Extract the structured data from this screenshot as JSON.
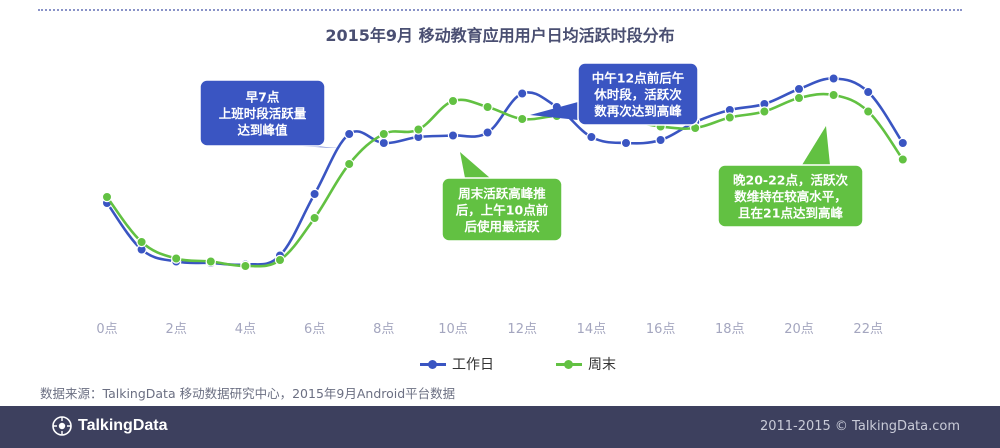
{
  "title": "2015年9月  移动教育应用用户日均活跃时段分布",
  "colors": {
    "workday": "#3a55c2",
    "weekend": "#62c142",
    "axis_text": "#a4a6bf",
    "footer_bg": "#3d405e"
  },
  "chart_data": {
    "type": "line",
    "x": [
      0,
      1,
      2,
      3,
      4,
      5,
      6,
      7,
      8,
      9,
      10,
      11,
      12,
      13,
      14,
      15,
      16,
      17,
      18,
      19,
      20,
      21,
      22,
      23
    ],
    "x_tick_labels": [
      "0点",
      "2点",
      "4点",
      "6点",
      "8点",
      "10点",
      "12点",
      "14点",
      "16点",
      "18点",
      "20点",
      "22点"
    ],
    "series": [
      {
        "name": "工作日",
        "color": "#3a55c2",
        "values": [
          42,
          11,
          3,
          2,
          1,
          7,
          48,
          88,
          82,
          86,
          87,
          89,
          115,
          106,
          86,
          82,
          84,
          96,
          104,
          108,
          118,
          125,
          116,
          82
        ]
      },
      {
        "name": "周末",
        "color": "#62c142",
        "values": [
          46,
          16,
          5,
          3,
          0,
          4,
          32,
          68,
          88,
          91,
          110,
          106,
          98,
          100,
          99,
          97,
          93,
          92,
          99,
          103,
          112,
          114,
          103,
          71
        ]
      }
    ],
    "annotations": [
      {
        "id": "morning",
        "text": [
          "早7点",
          "上班时段活跃量",
          "达到峰值"
        ],
        "color": "#3a55c2"
      },
      {
        "id": "weekend_peak",
        "text": [
          "周末活跃高峰推",
          "后，上午10点前",
          "后使用最活跃"
        ],
        "color": "#62c142"
      },
      {
        "id": "noon",
        "text": [
          "中午12点前后午",
          "休时段，活跃次",
          "数再次达到高峰"
        ],
        "color": "#3a55c2"
      },
      {
        "id": "evening",
        "text": [
          "晚20-22点，活跃次",
          "数维持在较高水平，",
          "且在21点达到高峰"
        ],
        "color": "#62c142"
      }
    ],
    "legend": [
      "工作日",
      "周末"
    ]
  },
  "source": "数据来源：TalkingData 移动数据研究中心，2015年9月Android平台数据",
  "footer": {
    "logo": "TalkingData",
    "copyright": "2011-2015 © TalkingData.com"
  }
}
